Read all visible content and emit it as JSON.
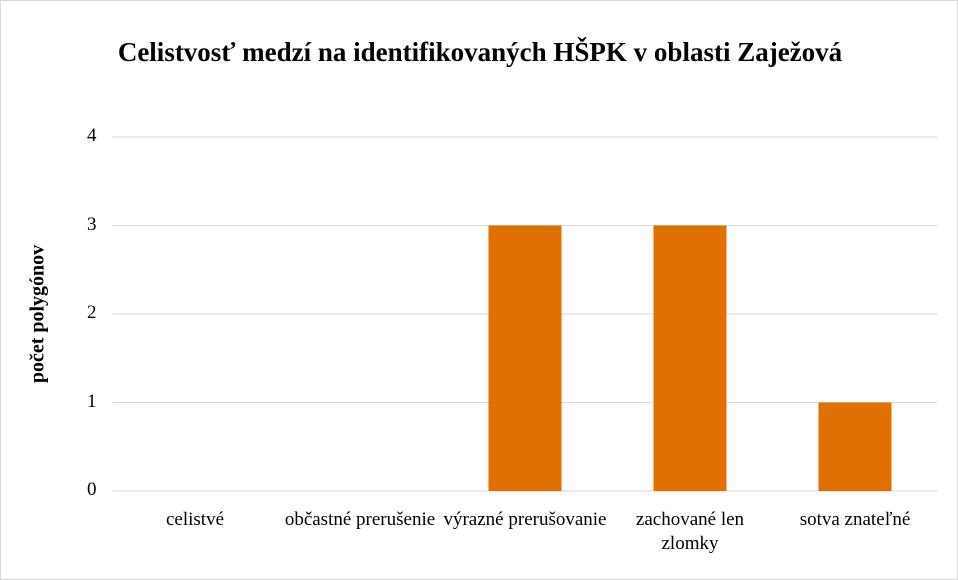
{
  "chart_data": {
    "type": "bar",
    "title": "Celistvosť medzí na identifikovaných HŠPK v oblasti Zaježová",
    "y_label": "počet polygónov",
    "categories": [
      "celistvé",
      "občastné prerušenie",
      "výrazné prerušovanie",
      "zachované len zlomky",
      "sotva znateľné"
    ],
    "values": [
      0,
      0,
      3,
      3,
      1
    ],
    "color": "#e07000",
    "ylim": [
      0,
      4
    ],
    "yticks": [
      0,
      1,
      2,
      3,
      4
    ],
    "grid": true
  }
}
